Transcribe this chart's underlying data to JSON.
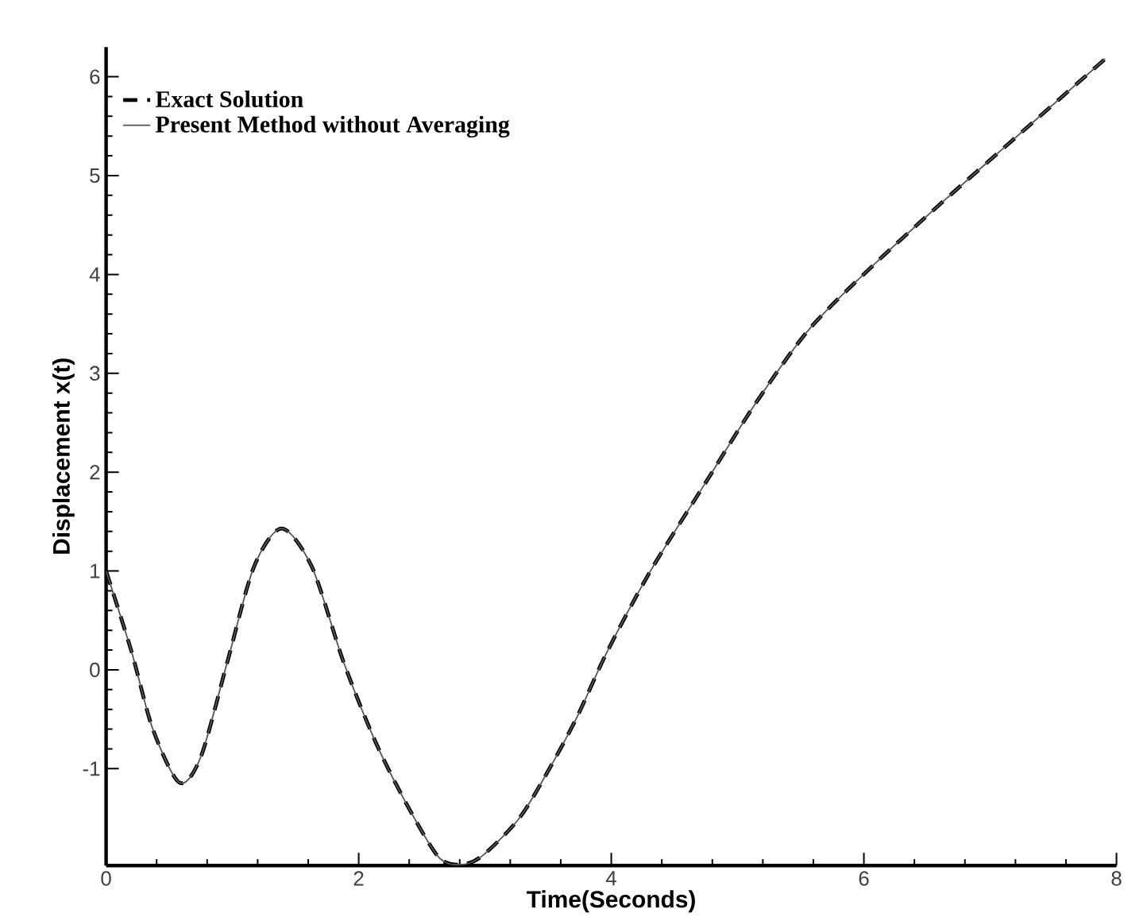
{
  "chart_data": {
    "type": "line",
    "xlabel": "Time(Seconds)",
    "ylabel": "Displacement x(t)",
    "x": [
      0,
      0.2,
      0.37,
      0.58,
      0.75,
      0.96,
      1.17,
      1.39,
      1.63,
      1.88,
      2.13,
      2.38,
      2.63,
      2.8,
      2.97,
      3.26,
      3.47,
      3.72,
      3.97,
      4.31,
      4.75,
      5.15,
      5.57,
      6.08,
      6.62,
      7.25,
      7.91
    ],
    "series": [
      {
        "name": "Exact Solution",
        "color": "#000000",
        "line_style": "dashed",
        "values": [
          1.0,
          0.19,
          -0.6,
          -1.14,
          -0.88,
          0.08,
          1.04,
          1.43,
          1.04,
          0.08,
          -0.72,
          -1.36,
          -1.89,
          -1.97,
          -1.89,
          -1.52,
          -1.09,
          -0.5,
          0.19,
          1.0,
          1.9,
          2.71,
          3.45,
          4.1,
          4.73,
          5.44,
          6.18
        ]
      },
      {
        "name": "Present Method without Averaging",
        "color": "#555555",
        "line_style": "solid",
        "values": [
          1.0,
          0.19,
          -0.6,
          -1.14,
          -0.88,
          0.08,
          1.04,
          1.43,
          1.04,
          0.08,
          -0.72,
          -1.36,
          -1.89,
          -1.97,
          -1.89,
          -1.52,
          -1.09,
          -0.5,
          0.19,
          1.0,
          1.9,
          2.71,
          3.45,
          4.1,
          4.73,
          5.44,
          6.18
        ]
      }
    ],
    "xlim": [
      0,
      8
    ],
    "xticks": [
      0,
      2,
      4,
      6,
      8
    ],
    "ylim": [
      -1.98,
      6.3
    ],
    "yticks": [
      -1,
      0,
      1,
      2,
      3,
      4,
      5,
      6
    ],
    "legend": "top left",
    "grid": false,
    "marker": "none"
  }
}
